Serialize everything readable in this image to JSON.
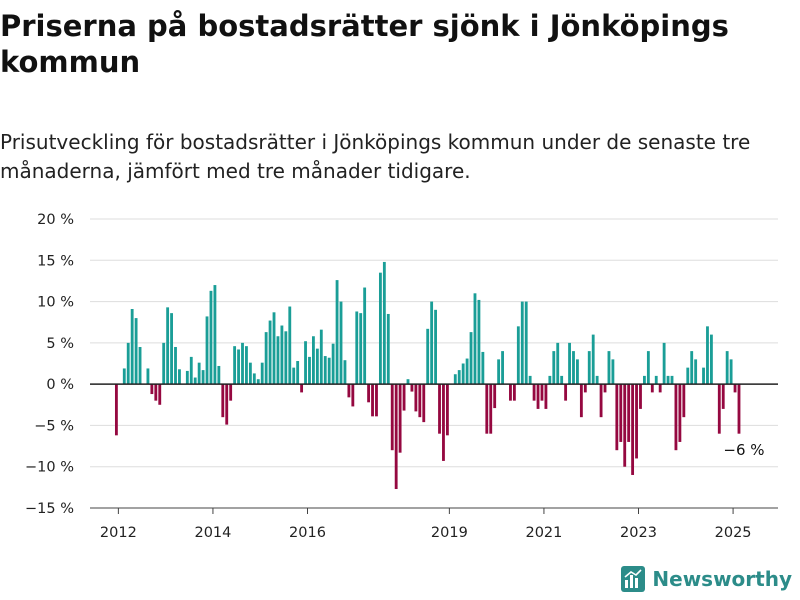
{
  "title": "Priserna på bostadsrätter sjönk i Jönköpings kommun",
  "subtitle": "Prisutveckling för bostadsrätter i Jönköpings kommun under de senaste tre månaderna, jämfört med tre månader tidigare.",
  "brand": {
    "name": "Newsworthy",
    "color": "#2c8c89"
  },
  "colors": {
    "positive": "#1a9e97",
    "negative": "#950840",
    "grid": "#dddddd",
    "zero_line": "#222222"
  },
  "chart_data": {
    "type": "bar",
    "unit": "%",
    "ylim": [
      -15,
      20
    ],
    "y_ticks": [
      -15,
      -10,
      -5,
      0,
      5,
      10,
      15,
      20
    ],
    "y_tick_labels": [
      "−15 %",
      "−10 %",
      "−5 %",
      "0 %",
      "5 %",
      "10 %",
      "15 %",
      "20 %"
    ],
    "x_ticks": [
      2012,
      2014,
      2016,
      2019,
      2021,
      2023,
      2025
    ],
    "grid": true,
    "annotation": {
      "text": "−6 %",
      "value": -6
    },
    "series": [
      {
        "period": "2011-12",
        "value": -6.2
      },
      {
        "period": "2012-02",
        "value": 1.9
      },
      {
        "period": "2012-03",
        "value": 5.0
      },
      {
        "period": "2012-04",
        "value": 9.1
      },
      {
        "period": "2012-05",
        "value": 8.0
      },
      {
        "period": "2012-06",
        "value": 4.5
      },
      {
        "period": "2012-08",
        "value": 1.9
      },
      {
        "period": "2012-09",
        "value": -1.2
      },
      {
        "period": "2012-10",
        "value": -2.0
      },
      {
        "period": "2012-11",
        "value": -2.5
      },
      {
        "period": "2012-12",
        "value": 5.0
      },
      {
        "period": "2013-01",
        "value": 9.3
      },
      {
        "period": "2013-02",
        "value": 8.6
      },
      {
        "period": "2013-03",
        "value": 4.5
      },
      {
        "period": "2013-04",
        "value": 1.8
      },
      {
        "period": "2013-06",
        "value": 1.6
      },
      {
        "period": "2013-07",
        "value": 3.3
      },
      {
        "period": "2013-08",
        "value": 0.8
      },
      {
        "period": "2013-09",
        "value": 2.6
      },
      {
        "period": "2013-10",
        "value": 1.7
      },
      {
        "period": "2013-11",
        "value": 8.2
      },
      {
        "period": "2013-12",
        "value": 11.3
      },
      {
        "period": "2014-01",
        "value": 12.0
      },
      {
        "period": "2014-02",
        "value": 2.2
      },
      {
        "period": "2014-03",
        "value": -4.0
      },
      {
        "period": "2014-04",
        "value": -4.9
      },
      {
        "period": "2014-05",
        "value": -2.0
      },
      {
        "period": "2014-06",
        "value": 4.6
      },
      {
        "period": "2014-07",
        "value": 4.2
      },
      {
        "period": "2014-08",
        "value": 5.0
      },
      {
        "period": "2014-09",
        "value": 4.6
      },
      {
        "period": "2014-10",
        "value": 2.6
      },
      {
        "period": "2014-11",
        "value": 1.3
      },
      {
        "period": "2014-12",
        "value": 0.6
      },
      {
        "period": "2015-01",
        "value": 2.6
      },
      {
        "period": "2015-02",
        "value": 6.3
      },
      {
        "period": "2015-03",
        "value": 7.7
      },
      {
        "period": "2015-04",
        "value": 8.7
      },
      {
        "period": "2015-05",
        "value": 5.8
      },
      {
        "period": "2015-06",
        "value": 7.1
      },
      {
        "period": "2015-07",
        "value": 6.4
      },
      {
        "period": "2015-08",
        "value": 9.4
      },
      {
        "period": "2015-09",
        "value": 2.0
      },
      {
        "period": "2015-10",
        "value": 2.8
      },
      {
        "period": "2015-11",
        "value": -1.0
      },
      {
        "period": "2015-12",
        "value": 5.2
      },
      {
        "period": "2016-01",
        "value": 3.3
      },
      {
        "period": "2016-02",
        "value": 5.8
      },
      {
        "period": "2016-03",
        "value": 4.3
      },
      {
        "period": "2016-04",
        "value": 6.6
      },
      {
        "period": "2016-05",
        "value": 3.4
      },
      {
        "period": "2016-06",
        "value": 3.2
      },
      {
        "period": "2016-07",
        "value": 4.9
      },
      {
        "period": "2016-08",
        "value": 12.6
      },
      {
        "period": "2016-09",
        "value": 10.0
      },
      {
        "period": "2016-10",
        "value": 2.9
      },
      {
        "period": "2016-11",
        "value": -1.6
      },
      {
        "period": "2016-12",
        "value": -2.7
      },
      {
        "period": "2017-01",
        "value": 8.8
      },
      {
        "period": "2017-02",
        "value": 8.6
      },
      {
        "period": "2017-03",
        "value": 11.7
      },
      {
        "period": "2017-04",
        "value": -2.2
      },
      {
        "period": "2017-05",
        "value": -3.9
      },
      {
        "period": "2017-06",
        "value": -3.9
      },
      {
        "period": "2017-07",
        "value": 13.5
      },
      {
        "period": "2017-08",
        "value": 14.8
      },
      {
        "period": "2017-09",
        "value": 8.5
      },
      {
        "period": "2017-10",
        "value": -8.0
      },
      {
        "period": "2017-11",
        "value": -12.7
      },
      {
        "period": "2017-12",
        "value": -8.3
      },
      {
        "period": "2018-01",
        "value": -3.2
      },
      {
        "period": "2018-02",
        "value": 0.6
      },
      {
        "period": "2018-03",
        "value": -0.9
      },
      {
        "period": "2018-04",
        "value": -3.3
      },
      {
        "period": "2018-05",
        "value": -4.0
      },
      {
        "period": "2018-06",
        "value": -4.6
      },
      {
        "period": "2018-07",
        "value": 6.7
      },
      {
        "period": "2018-08",
        "value": 10.0
      },
      {
        "period": "2018-09",
        "value": 9.0
      },
      {
        "period": "2018-10",
        "value": -6.0
      },
      {
        "period": "2018-11",
        "value": -9.3
      },
      {
        "period": "2018-12",
        "value": -6.2
      },
      {
        "period": "2019-02",
        "value": 1.2
      },
      {
        "period": "2019-03",
        "value": 1.7
      },
      {
        "period": "2019-04",
        "value": 2.5
      },
      {
        "period": "2019-05",
        "value": 3.1
      },
      {
        "period": "2019-06",
        "value": 6.3
      },
      {
        "period": "2019-07",
        "value": 11.0
      },
      {
        "period": "2019-08",
        "value": 10.2
      },
      {
        "period": "2019-09",
        "value": 3.9
      },
      {
        "period": "2019-10",
        "value": -6.0
      },
      {
        "period": "2019-11",
        "value": -6.0
      },
      {
        "period": "2019-12",
        "value": -2.9
      },
      {
        "period": "2020-01",
        "value": 3.0
      },
      {
        "period": "2020-02",
        "value": 4.0
      },
      {
        "period": "2020-04",
        "value": -2.0
      },
      {
        "period": "2020-05",
        "value": -2.0
      },
      {
        "period": "2020-06",
        "value": 7.0
      },
      {
        "period": "2020-07",
        "value": 10.0
      },
      {
        "period": "2020-08",
        "value": 10.0
      },
      {
        "period": "2020-09",
        "value": 1.0
      },
      {
        "period": "2020-10",
        "value": -2.0
      },
      {
        "period": "2020-11",
        "value": -3.0
      },
      {
        "period": "2020-12",
        "value": -2.0
      },
      {
        "period": "2021-01",
        "value": -3.0
      },
      {
        "period": "2021-02",
        "value": 1.0
      },
      {
        "period": "2021-03",
        "value": 4.0
      },
      {
        "period": "2021-04",
        "value": 5.0
      },
      {
        "period": "2021-05",
        "value": 1.0
      },
      {
        "period": "2021-06",
        "value": -2.0
      },
      {
        "period": "2021-07",
        "value": 5.0
      },
      {
        "period": "2021-08",
        "value": 4.0
      },
      {
        "period": "2021-09",
        "value": 3.0
      },
      {
        "period": "2021-10",
        "value": -4.0
      },
      {
        "period": "2021-11",
        "value": -1.0
      },
      {
        "period": "2021-12",
        "value": 4.0
      },
      {
        "period": "2022-01",
        "value": 6.0
      },
      {
        "period": "2022-02",
        "value": 1.0
      },
      {
        "period": "2022-03",
        "value": -4.0
      },
      {
        "period": "2022-04",
        "value": -1.0
      },
      {
        "period": "2022-05",
        "value": 4.0
      },
      {
        "period": "2022-06",
        "value": 3.0
      },
      {
        "period": "2022-07",
        "value": -8.0
      },
      {
        "period": "2022-08",
        "value": -7.0
      },
      {
        "period": "2022-09",
        "value": -10.0
      },
      {
        "period": "2022-10",
        "value": -7.0
      },
      {
        "period": "2022-11",
        "value": -11.0
      },
      {
        "period": "2022-12",
        "value": -9.0
      },
      {
        "period": "2023-01",
        "value": -3.0
      },
      {
        "period": "2023-02",
        "value": 1.0
      },
      {
        "period": "2023-03",
        "value": 4.0
      },
      {
        "period": "2023-04",
        "value": -1.0
      },
      {
        "period": "2023-05",
        "value": 1.0
      },
      {
        "period": "2023-06",
        "value": -1.0
      },
      {
        "period": "2023-07",
        "value": 5.0
      },
      {
        "period": "2023-08",
        "value": 1.0
      },
      {
        "period": "2023-09",
        "value": 1.0
      },
      {
        "period": "2023-10",
        "value": -8.0
      },
      {
        "period": "2023-11",
        "value": -7.0
      },
      {
        "period": "2023-12",
        "value": -4.0
      },
      {
        "period": "2024-01",
        "value": 2.0
      },
      {
        "period": "2024-02",
        "value": 4.0
      },
      {
        "period": "2024-03",
        "value": 3.0
      },
      {
        "period": "2024-05",
        "value": 2.0
      },
      {
        "period": "2024-06",
        "value": 7.0
      },
      {
        "period": "2024-07",
        "value": 6.0
      },
      {
        "period": "2024-09",
        "value": -6.0
      },
      {
        "period": "2024-10",
        "value": -3.0
      },
      {
        "period": "2024-11",
        "value": 4.0
      },
      {
        "period": "2024-12",
        "value": 3.0
      },
      {
        "period": "2025-01",
        "value": -1.0
      },
      {
        "period": "2025-02",
        "value": -6.0
      }
    ]
  }
}
